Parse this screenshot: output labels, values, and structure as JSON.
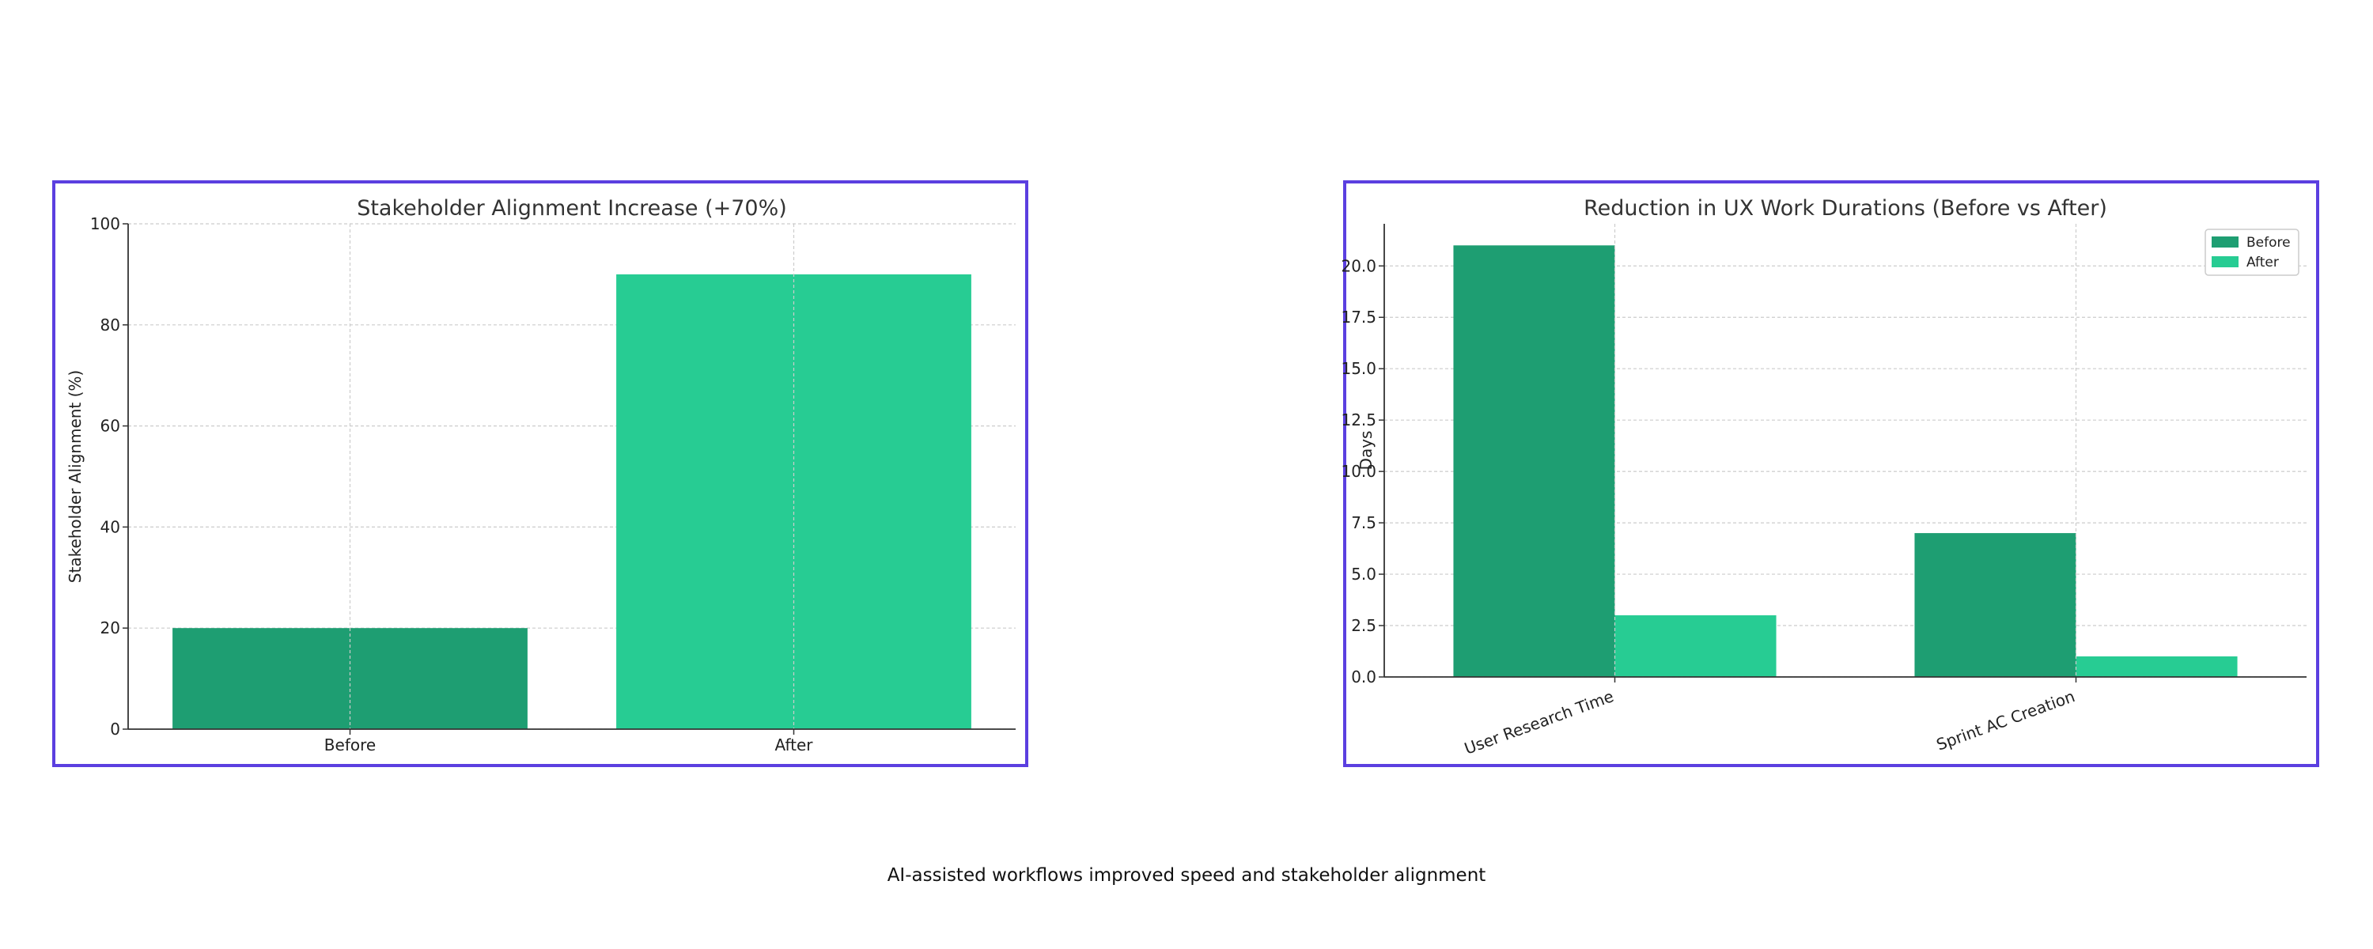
{
  "caption": "AI-assisted workflows improved speed and stakeholder alignment",
  "colors": {
    "before": "#1e9e72",
    "after": "#27cc93",
    "frame": "#5b3fe0"
  },
  "chart_data": [
    {
      "type": "bar",
      "title": "Stakeholder Alignment Increase (+70%)",
      "xlabel": "",
      "ylabel": "Stakeholder Alignment (%)",
      "categories": [
        "Before",
        "After"
      ],
      "values": [
        20,
        90
      ],
      "ylim": [
        0,
        100
      ],
      "yticks": [
        "0",
        "20",
        "40",
        "60",
        "80",
        "100"
      ],
      "grid": true,
      "legend": "none"
    },
    {
      "type": "bar",
      "title": "Reduction in UX Work Durations (Before vs After)",
      "xlabel": "",
      "ylabel": "Days",
      "categories": [
        "User Research Time",
        "Sprint AC Creation"
      ],
      "series": [
        {
          "name": "Before",
          "values": [
            21,
            7
          ]
        },
        {
          "name": "After",
          "values": [
            3,
            1
          ]
        }
      ],
      "ylim": [
        0,
        22.05
      ],
      "yticks": [
        "0.0",
        "2.5",
        "5.0",
        "7.5",
        "10.0",
        "12.5",
        "15.0",
        "17.5",
        "20.0"
      ],
      "grid": true,
      "legend": "top-right"
    }
  ]
}
